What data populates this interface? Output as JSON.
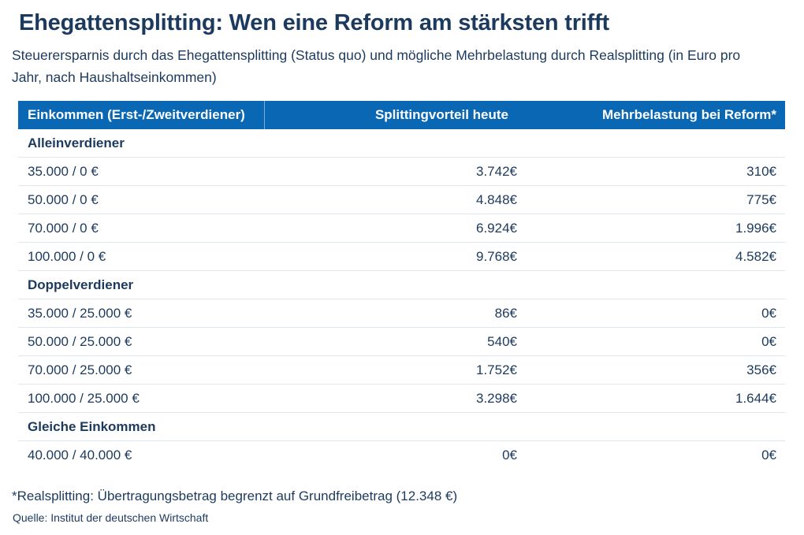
{
  "title": "Ehegattensplitting: Wen eine Reform am stärksten trifft",
  "subtitle": "Steuerersparnis durch das Ehegattensplitting (Status quo) und mögliche Mehrbelastung durch Realsplitting (in Euro pro Jahr, nach Haushaltseinkommen)",
  "colors": {
    "header_bg": "#0a67b3",
    "text": "#1c3a5e",
    "row_line": "#dde7ee"
  },
  "table": {
    "columns": [
      "Einkommen (Erst-/Zweitverdiener)",
      "Splittingvorteil heute",
      "Mehrbelastung bei Reform*"
    ],
    "sections": [
      {
        "label": "Alleinverdiener",
        "rows": [
          [
            "35.000 / 0 €",
            "3.742€",
            "310€"
          ],
          [
            "50.000 / 0 €",
            "4.848€",
            "775€"
          ],
          [
            "70.000 / 0 €",
            "6.924€",
            "1.996€"
          ],
          [
            "100.000 / 0 €",
            "9.768€",
            "4.582€"
          ]
        ]
      },
      {
        "label": "Doppelverdiener",
        "rows": [
          [
            "35.000 / 25.000 €",
            "86€",
            "0€"
          ],
          [
            "50.000 / 25.000 €",
            "540€",
            "0€"
          ],
          [
            "70.000 / 25.000 €",
            "1.752€",
            "356€"
          ],
          [
            "100.000 / 25.000 €",
            "3.298€",
            "1.644€"
          ]
        ]
      },
      {
        "label": "Gleiche Einkommen",
        "rows": [
          [
            "40.000 / 40.000 €",
            "0€",
            "0€"
          ]
        ]
      }
    ]
  },
  "footnote": "*Realsplitting: Übertragungsbetrag begrenzt auf Grundfreibetrag (12.348 €)",
  "source": "Quelle: Institut der deutschen Wirtschaft",
  "chart_data": {
    "type": "table",
    "title": "Ehegattensplitting: Wen eine Reform am stärksten trifft",
    "subtitle": "Steuerersparnis durch das Ehegattensplitting (Status quo) und mögliche Mehrbelastung durch Realsplitting (in Euro pro Jahr, nach Haushaltseinkommen)",
    "unit": "Euro pro Jahr",
    "columns": [
      "Einkommen (Erst-/Zweitverdiener)",
      "Splittingvorteil heute",
      "Mehrbelastung bei Reform*"
    ],
    "sections": [
      {
        "name": "Alleinverdiener",
        "rows": [
          {
            "einkommen": "35.000 / 0 €",
            "splittingvorteil_heute": 3742,
            "mehrbelastung_bei_reform": 310
          },
          {
            "einkommen": "50.000 / 0 €",
            "splittingvorteil_heute": 4848,
            "mehrbelastung_bei_reform": 775
          },
          {
            "einkommen": "70.000 / 0 €",
            "splittingvorteil_heute": 6924,
            "mehrbelastung_bei_reform": 1996
          },
          {
            "einkommen": "100.000 / 0 €",
            "splittingvorteil_heute": 9768,
            "mehrbelastung_bei_reform": 4582
          }
        ]
      },
      {
        "name": "Doppelverdiener",
        "rows": [
          {
            "einkommen": "35.000 / 25.000 €",
            "splittingvorteil_heute": 86,
            "mehrbelastung_bei_reform": 0
          },
          {
            "einkommen": "50.000 / 25.000 €",
            "splittingvorteil_heute": 540,
            "mehrbelastung_bei_reform": 0
          },
          {
            "einkommen": "70.000 / 25.000 €",
            "splittingvorteil_heute": 1752,
            "mehrbelastung_bei_reform": 356
          },
          {
            "einkommen": "100.000 / 25.000 €",
            "splittingvorteil_heute": 3298,
            "mehrbelastung_bei_reform": 1644
          }
        ]
      },
      {
        "name": "Gleiche Einkommen",
        "rows": [
          {
            "einkommen": "40.000 / 40.000 €",
            "splittingvorteil_heute": 0,
            "mehrbelastung_bei_reform": 0
          }
        ]
      }
    ],
    "footnote": "*Realsplitting: Übertragungsbetrag begrenzt auf Grundfreibetrag (12.348 €)",
    "source": "Quelle: Institut der deutschen Wirtschaft"
  }
}
